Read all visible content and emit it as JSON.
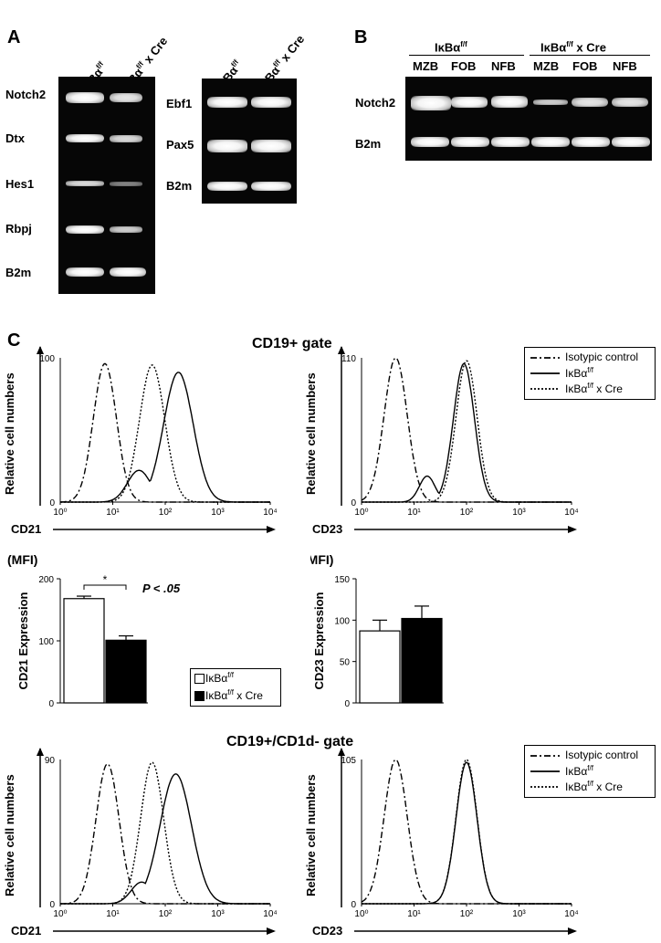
{
  "panelA": {
    "letter": "A",
    "lanes_left": [
      "IκBα",
      "IκBα"
    ],
    "lanes_left_sup": [
      "f/f",
      "f/f"
    ],
    "lanes_left_suffix": [
      "",
      " x Cre"
    ],
    "genes_left": [
      "Notch2",
      "Dtx",
      "Hes1",
      "Rbpj",
      "B2m"
    ],
    "genes_right": [
      "Ebf1",
      "Pax5",
      "B2m"
    ]
  },
  "panelB": {
    "letter": "B",
    "group1": "IκBαf/f",
    "group2": "IκBαf/f x Cre",
    "lanes": [
      "MZB",
      "FOB",
      "NFB",
      "MZB",
      "FOB",
      "NFB"
    ],
    "genes": [
      "Notch2",
      "B2m"
    ]
  },
  "panelC": {
    "letter": "C",
    "gate1_title": "CD19+ gate",
    "gate2_title": "CD19+/CD1d- gate",
    "ylabel": "Relative cell numbers",
    "legend": {
      "isotype": "Isotypic control",
      "ff": "IκBαf/f",
      "ffcre": "IκBαf/f x Cre"
    },
    "histograms": [
      {
        "xlabel": "CD21",
        "ymax": "100"
      },
      {
        "xlabel": "CD23",
        "ymax": "110"
      },
      {
        "xlabel": "CD21",
        "ymax": "90"
      },
      {
        "xlabel": "CD23",
        "ymax": "105"
      }
    ],
    "xticks": [
      "10⁰",
      "10¹",
      "10²",
      "10³",
      "10⁴"
    ]
  },
  "chart_data": [
    {
      "type": "bar",
      "title": "(MFI)",
      "ylabel": "CD21 Expression",
      "categories": [
        "IκBαf/f",
        "IκBαf/f x Cre"
      ],
      "values": [
        168,
        101
      ],
      "errors": [
        4,
        7
      ],
      "ylim": [
        0,
        200
      ],
      "yticks": [
        0,
        100,
        200
      ],
      "annotation": "P < .05",
      "star": "*",
      "legend": [
        "IκBαf/f",
        "IκBαf/f x Cre"
      ]
    },
    {
      "type": "bar",
      "title": "(MFI)",
      "ylabel": "CD23 Expression",
      "categories": [
        "IκBαf/f",
        "IκBαf/f x Cre"
      ],
      "values": [
        87,
        102
      ],
      "errors": [
        13,
        15
      ],
      "ylim": [
        0,
        150
      ],
      "yticks": [
        0,
        50,
        100,
        150
      ]
    }
  ]
}
